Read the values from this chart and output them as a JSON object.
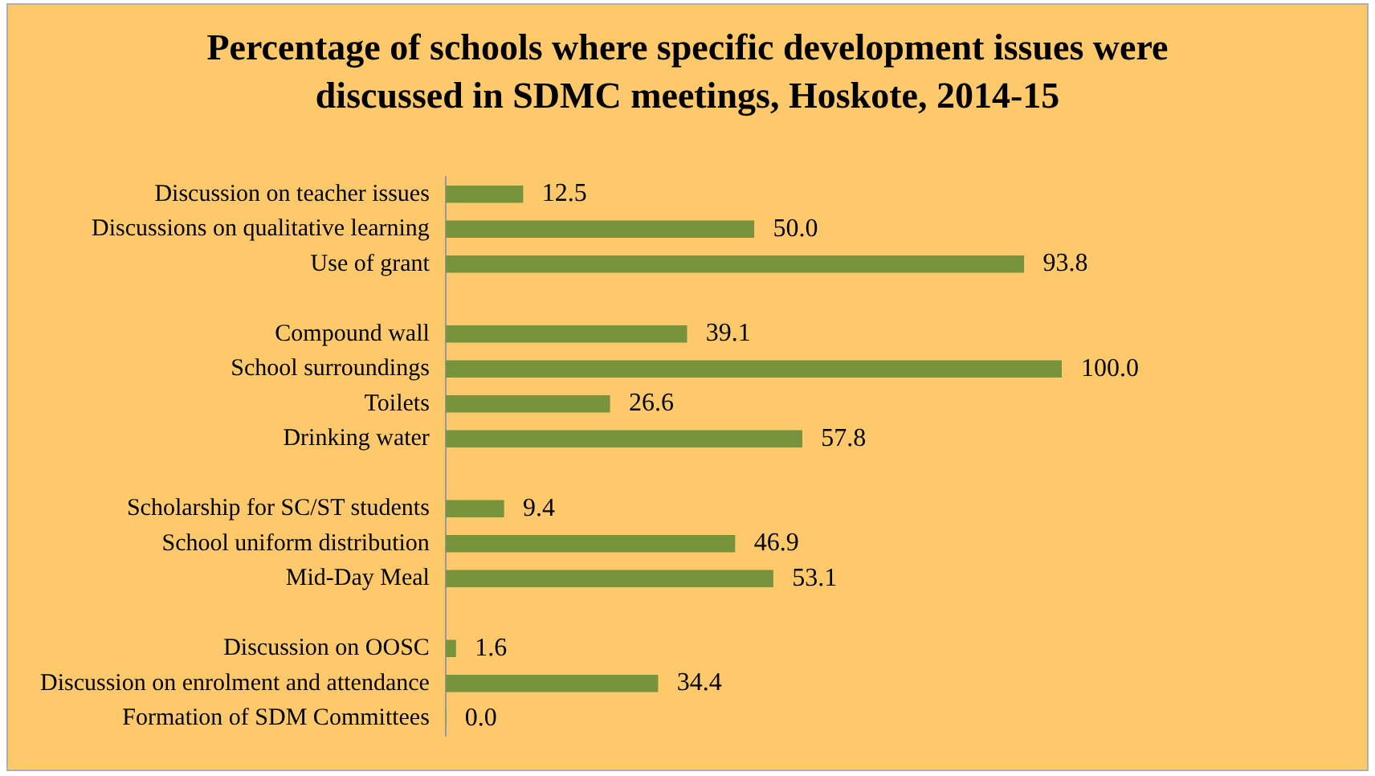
{
  "chart_data": {
    "type": "bar",
    "orientation": "horizontal",
    "title": "Percentage of schools where specific development issues were discussed in SDMC meetings, Hoskote, 2014-15",
    "categories": [
      "Discussion on teacher issues",
      "Discussions on qualitative learning",
      "Use of grant",
      null,
      "Compound wall",
      "School surroundings",
      "Toilets",
      "Drinking water",
      null,
      "Scholarship for SC/ST students",
      "School uniform distribution",
      "Mid-Day Meal",
      null,
      "Discussion on OOSC",
      "Discussion on enrolment and attendance",
      "Formation of SDM Committees"
    ],
    "values": [
      12.5,
      50.0,
      93.8,
      null,
      39.1,
      100.0,
      26.6,
      57.8,
      null,
      9.4,
      46.9,
      53.1,
      null,
      1.6,
      34.4,
      0.0
    ],
    "value_labels": [
      "12.5",
      "50.0",
      "93.8",
      null,
      "39.1",
      "100.0",
      "26.6",
      "57.8",
      null,
      "9.4",
      "46.9",
      "53.1",
      null,
      "1.6",
      "34.4",
      "0.0"
    ],
    "color": "#77933c",
    "grid": false
  }
}
